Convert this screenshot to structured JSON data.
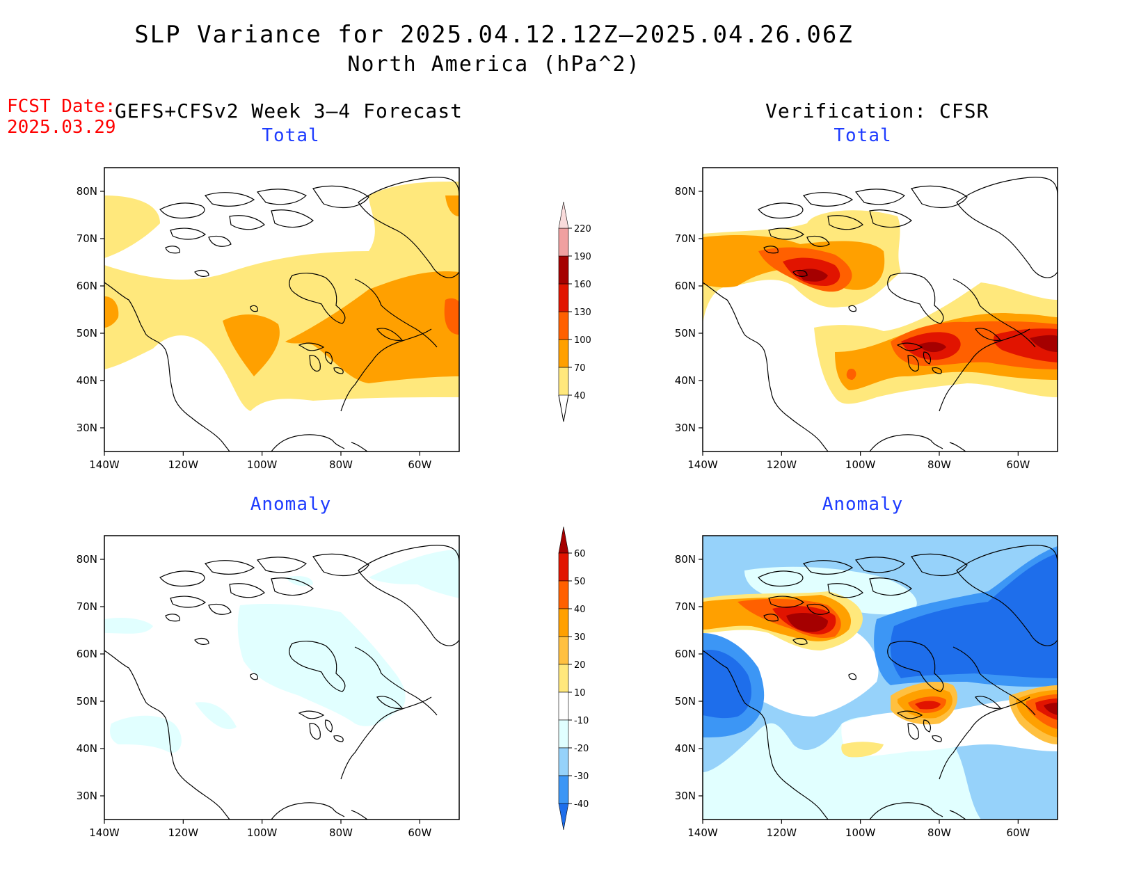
{
  "title": "SLP Variance for 2025.04.12.12Z—2025.04.26.06Z",
  "subtitle": "North America (hPa^2)",
  "fcst_label": "FCST Date:",
  "fcst_date": "2025.03.29",
  "left_heading": "GEFS+CFSv2 Week 3—4 Forecast",
  "right_heading": "Verification: CFSR",
  "panels": {
    "forecast_total": {
      "title": "Total"
    },
    "forecast_anomaly": {
      "title": "Anomaly"
    },
    "verification_total": {
      "title": "Total"
    },
    "verification_anomaly": {
      "title": "Anomaly"
    }
  },
  "axes": {
    "lat_ticks": [
      "80N",
      "70N",
      "60N",
      "50N",
      "40N",
      "30N"
    ],
    "lon_ticks": [
      "140W",
      "120W",
      "100W",
      "80W",
      "60W"
    ],
    "lat_range": [
      25,
      85
    ],
    "lon_range": [
      -140,
      -50
    ]
  },
  "total_colorbar": {
    "levels": [
      "40",
      "70",
      "100",
      "130",
      "160",
      "190",
      "220"
    ],
    "colors": [
      "#ffe87c",
      "#ffa000",
      "#ff6000",
      "#e11400",
      "#a50000",
      "#f0a0a0",
      "#fadcdc"
    ]
  },
  "anomaly_colorbar": {
    "levels": [
      "60",
      "50",
      "40",
      "30",
      "20",
      "10",
      "-10",
      "-20",
      "-30",
      "-40"
    ],
    "colors": [
      "#a50000",
      "#e11400",
      "#ff6000",
      "#ffa000",
      "#ffc040",
      "#ffe87c",
      "#ffffff",
      "#e1ffff",
      "#96d2fa",
      "#3c96f5",
      "#1e6eeb"
    ]
  },
  "colors": {
    "title_red": "#ff0000",
    "panel_title_blue": "#1e3cff"
  }
}
